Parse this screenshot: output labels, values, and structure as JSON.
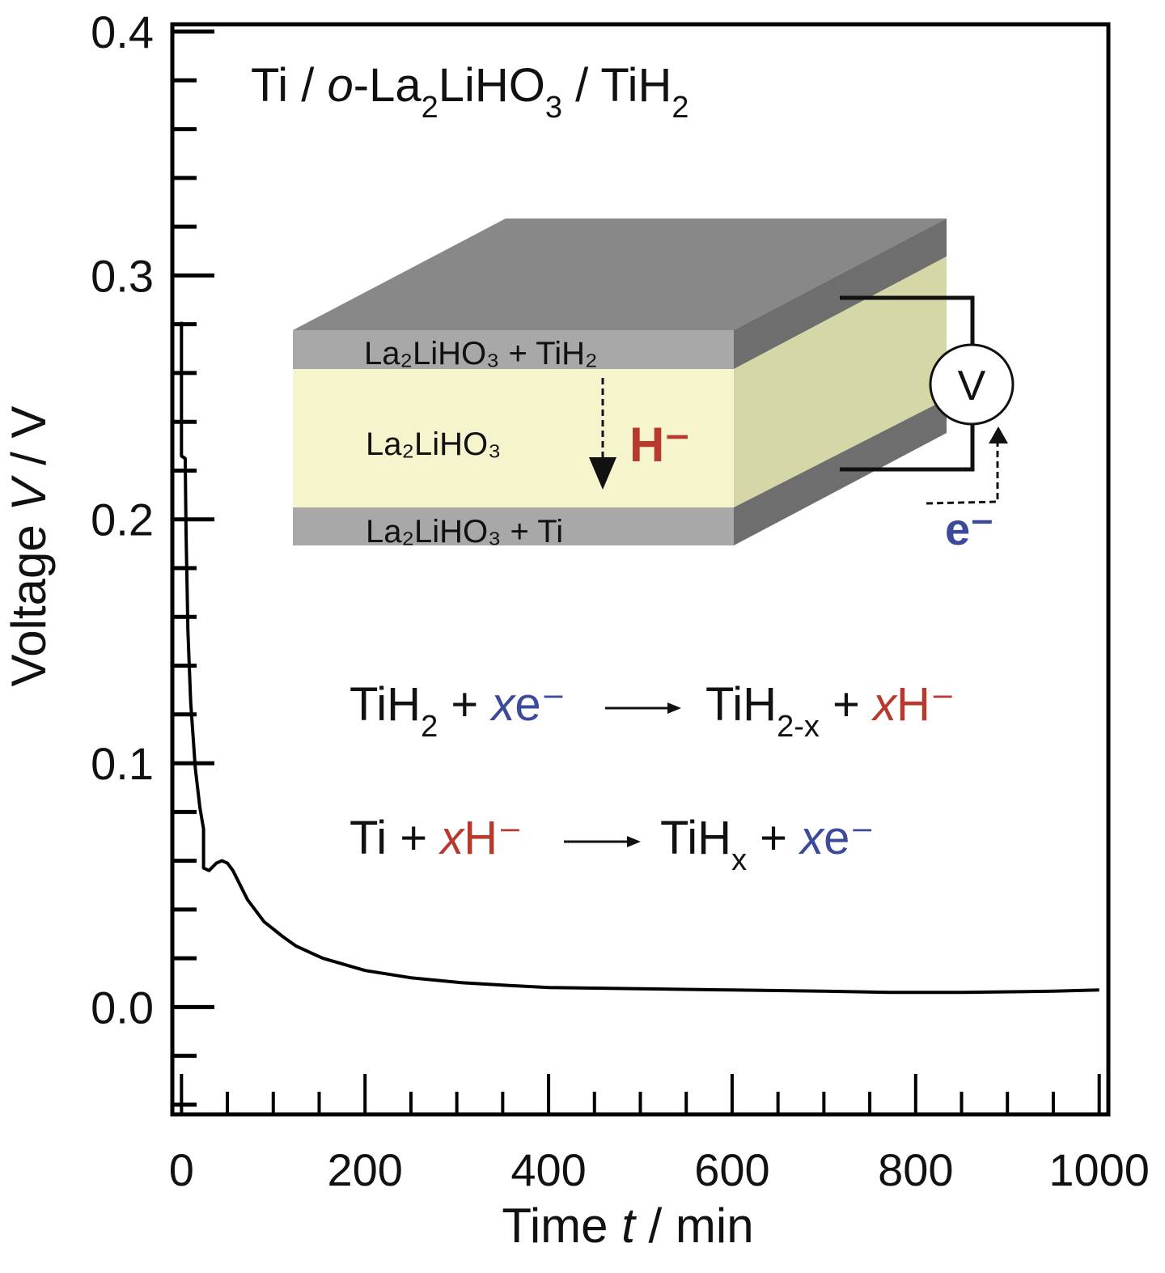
{
  "chart_data": {
    "type": "line",
    "title": "",
    "xlabel": "Time t / min",
    "xlabel_parts": {
      "pre": "Time ",
      "var": "t",
      "post": " / min"
    },
    "ylabel": "Voltage V / V",
    "ylabel_parts": {
      "pre": "Voltage ",
      "var": "V",
      "post": " / V"
    },
    "xlim": [
      -10,
      1010
    ],
    "ylim": [
      -0.044,
      0.403
    ],
    "x_ticks": [
      0,
      200,
      400,
      600,
      800,
      1000
    ],
    "x_tick_labels": [
      "0",
      "200",
      "400",
      "600",
      "800",
      "1000"
    ],
    "x_minor_step": 50,
    "y_ticks": [
      0.0,
      0.1,
      0.2,
      0.3,
      0.4
    ],
    "y_tick_labels": [
      "0.0",
      "0.1",
      "0.2",
      "0.3",
      "0.4"
    ],
    "y_minor_step": 0.02,
    "grid": false,
    "line_color": "#000000",
    "series": [
      {
        "x": [
          0,
          0,
          4,
          5,
          7,
          10,
          15,
          20,
          24,
          24,
          30,
          38,
          44,
          50,
          56,
          64,
          72,
          90,
          110,
          125,
          154,
          200,
          250,
          305,
          350,
          400,
          500,
          600,
          700,
          772,
          850,
          950,
          1000
        ],
        "y": [
          0.281,
          0.226,
          0.225,
          0.194,
          0.154,
          0.125,
          0.098,
          0.082,
          0.073,
          0.057,
          0.056,
          0.059,
          0.06,
          0.059,
          0.056,
          0.05,
          0.044,
          0.035,
          0.029,
          0.025,
          0.02,
          0.015,
          0.012,
          0.01,
          0.009,
          0.008,
          0.0075,
          0.007,
          0.0065,
          0.006,
          0.006,
          0.0065,
          0.007
        ]
      }
    ]
  },
  "annotations": {
    "cell_label": {
      "a": "Ti / ",
      "b": "o",
      "c": "-La",
      "d": "2",
      "e": "LiHO",
      "f": "3",
      "g": " / TiH",
      "h": "2"
    },
    "layer_top": "La₂LiHO₃ + TiH₂",
    "layer_middle": "La₂LiHO₃",
    "layer_bottom": "La₂LiHO₃ + Ti",
    "hydride_ion": "H⁻",
    "voltmeter": "V",
    "electron": "e⁻",
    "eq1": {
      "a": "TiH",
      "b": "2",
      "c": " + ",
      "d": "x",
      "e": "e⁻",
      "f": "TiH",
      "g": "2-x",
      "h": " + ",
      "i": "x",
      "j": "H⁻"
    },
    "eq2": {
      "a": "Ti + ",
      "b": "x",
      "c": "H⁻",
      "d": "TiH",
      "e": "x",
      "f": " + ",
      "g": "x",
      "h": "e⁻"
    },
    "colors": {
      "hydride": "#b83a2e",
      "electron": "#3b4a9a",
      "layer_gray": "#a8a8a8",
      "layer_yellow": "#f6f4cc",
      "top_face": "#888888",
      "side_dark": "#6e6e6e",
      "side_yellow": "#d5d8a6"
    }
  }
}
